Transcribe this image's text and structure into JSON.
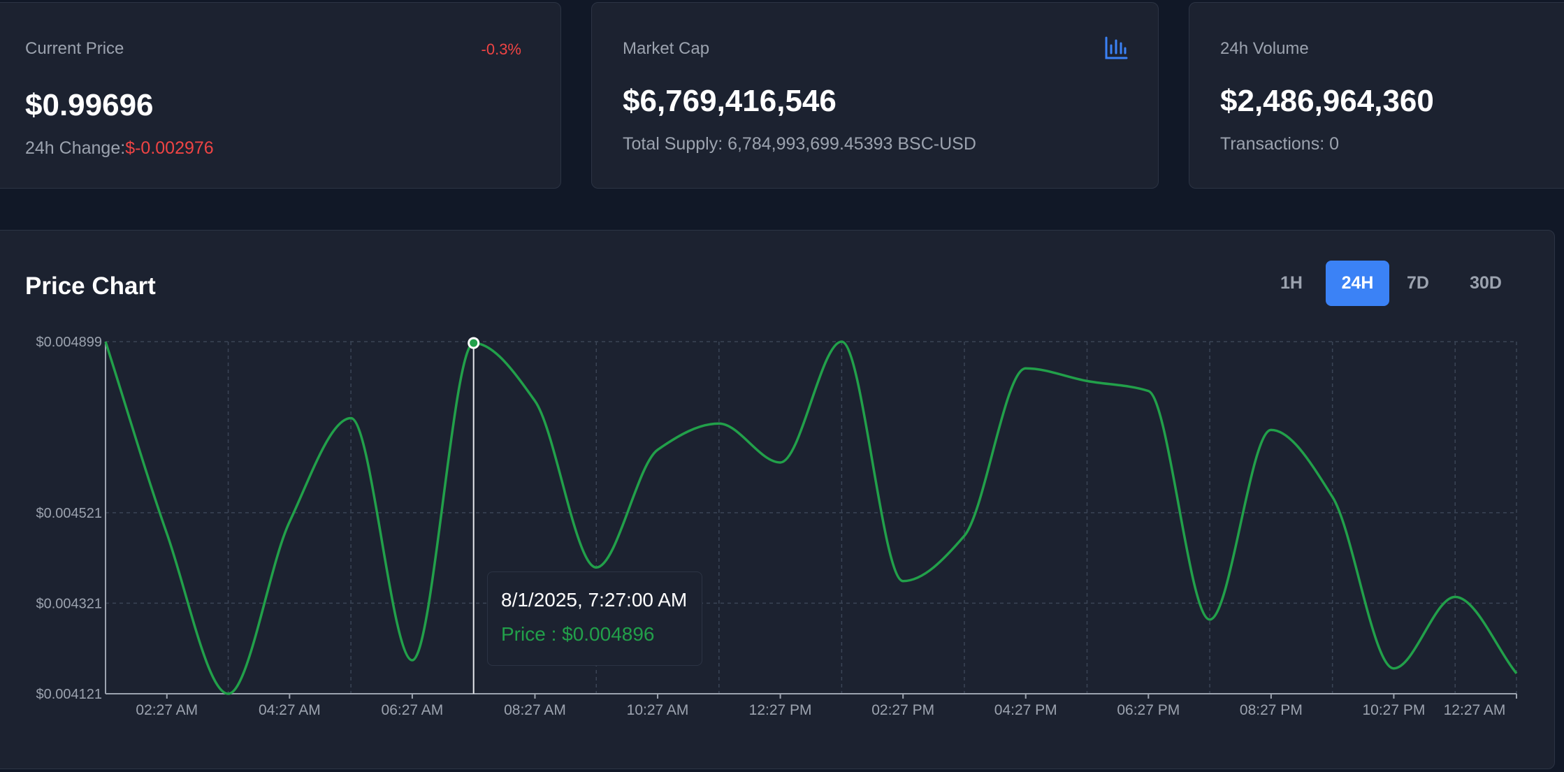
{
  "cards": {
    "price": {
      "label": "Current Price",
      "change_pct": "-0.3%",
      "value": "$0.99696",
      "sub_label": "24h Change:",
      "sub_value": "$-0.002976"
    },
    "market_cap": {
      "label": "Market Cap",
      "value": "$6,769,416,546",
      "sub": "Total Supply: 6,784,993,699.45393 BSC-USD",
      "icon": "bar-chart-icon"
    },
    "volume": {
      "label": "24h Volume",
      "value": "$2,486,964,360",
      "sub": "Transactions: 0"
    }
  },
  "chart_panel": {
    "title": "Price Chart",
    "ranges": [
      "1H",
      "24H",
      "7D",
      "30D"
    ],
    "active_range": "24H"
  },
  "tooltip": {
    "date": "8/1/2025, 7:27:00 AM",
    "price": "Price : $0.004896"
  },
  "colors": {
    "background": "#111827",
    "card": "#1c2230",
    "accent": "#3b82f6",
    "line": "#22a04a",
    "negative": "#ef4444"
  },
  "chart_data": {
    "type": "line",
    "title": "Price Chart",
    "xlabel": "",
    "ylabel": "",
    "y_ticks": [
      "$0.004899",
      "$0.004521",
      "$0.004321",
      "$0.004121"
    ],
    "y_tick_values": [
      0.004899,
      0.004521,
      0.004321,
      0.004121
    ],
    "x_ticks": [
      "02:27 AM",
      "04:27 AM",
      "06:27 AM",
      "08:27 AM",
      "10:27 AM",
      "12:27 PM",
      "02:27 PM",
      "04:27 PM",
      "06:27 PM",
      "08:27 PM",
      "10:27 PM",
      "12:27 AM"
    ],
    "ylim": [
      0.004121,
      0.004899
    ],
    "grid": true,
    "series": [
      {
        "x": [
          "01:27 AM",
          "02:27 AM",
          "03:27 AM",
          "04:27 AM",
          "05:27 AM",
          "06:27 AM",
          "07:27 AM",
          "08:27 AM",
          "09:27 AM",
          "10:27 AM",
          "11:27 AM",
          "12:27 PM",
          "01:27 PM",
          "02:27 PM",
          "03:27 PM",
          "04:27 PM",
          "05:27 PM",
          "06:27 PM",
          "07:27 PM",
          "08:27 PM",
          "09:27 PM",
          "10:27 PM",
          "11:27 PM",
          "12:27 AM"
        ],
        "values": [
          0.004899,
          0.004475,
          0.004121,
          0.004501,
          0.00473,
          0.004195,
          0.004896,
          0.004768,
          0.0044,
          0.00466,
          0.004718,
          0.004632,
          0.004899,
          0.00437,
          0.00447,
          0.00484,
          0.004812,
          0.00479,
          0.004285,
          0.004704,
          0.004556,
          0.004177,
          0.004335,
          0.004166
        ]
      }
    ]
  }
}
